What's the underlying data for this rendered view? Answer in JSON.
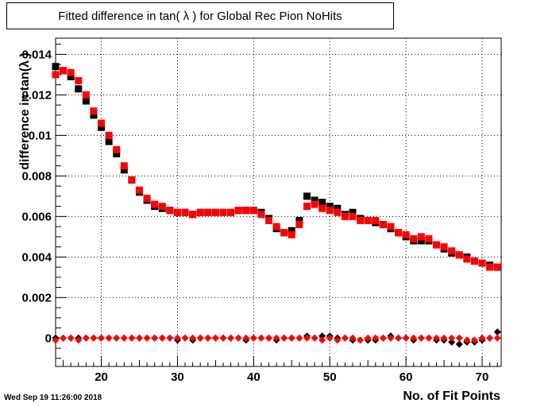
{
  "title": "Fitted difference in tan( λ ) for Global Rec Pion NoHits",
  "timestamp": "Wed Sep 19 11:26:00 2018",
  "chart_data": {
    "type": "scatter",
    "title": "Fitted difference in tan( λ ) for Global Rec Pion NoHits",
    "xlabel": "No. of Fit Points",
    "ylabel": "difference in tan(λ )",
    "xlim": [
      14,
      72.5
    ],
    "ylim": [
      -0.0014,
      0.0148
    ],
    "grid": true,
    "x_ticks": [
      20,
      30,
      40,
      50,
      60,
      70
    ],
    "x_tick_labels": [
      "20",
      "30",
      "40",
      "50",
      "60",
      "70"
    ],
    "y_ticks": [
      0,
      0.002,
      0.004,
      0.006,
      0.008,
      0.01,
      0.012,
      0.014
    ],
    "y_tick_labels": [
      "0",
      "0.002",
      "0.004",
      "0.006",
      "0.008",
      "0.01",
      "0.012",
      "0.014"
    ],
    "series": [
      {
        "marker": "square",
        "color": "#000000",
        "x": [
          14,
          15,
          16,
          17,
          18,
          19,
          20,
          21,
          22,
          23,
          24,
          25,
          26,
          27,
          28,
          29,
          30,
          31,
          32,
          33,
          34,
          35,
          36,
          37,
          38,
          39,
          40,
          41,
          42,
          43,
          44,
          45,
          46,
          47,
          48,
          49,
          50,
          51,
          52,
          53,
          54,
          55,
          56,
          57,
          58,
          59,
          60,
          61,
          62,
          63,
          64,
          65,
          66,
          67,
          68,
          69,
          70,
          71,
          72
        ],
        "values": [
          0.0134,
          0.0132,
          0.0129,
          0.0123,
          0.0117,
          0.011,
          0.0104,
          0.0097,
          0.0091,
          0.0083,
          0.0078,
          0.0072,
          0.0068,
          0.0065,
          0.0064,
          0.0063,
          0.0062,
          0.0062,
          0.0061,
          0.0062,
          0.0062,
          0.0062,
          0.0062,
          0.0062,
          0.0063,
          0.0063,
          0.0063,
          0.0062,
          0.0059,
          0.0054,
          0.0052,
          0.0053,
          0.0058,
          0.007,
          0.0068,
          0.0067,
          0.0065,
          0.0064,
          0.0061,
          0.0062,
          0.0059,
          0.0058,
          0.0057,
          0.0056,
          0.0054,
          0.0052,
          0.005,
          0.0048,
          0.0048,
          0.0048,
          0.0046,
          0.0044,
          0.0042,
          0.0041,
          0.004,
          0.0038,
          0.0037,
          0.0036,
          0.0035
        ]
      },
      {
        "marker": "square",
        "color": "#ff0000",
        "x": [
          14,
          15,
          16,
          17,
          18,
          19,
          20,
          21,
          22,
          23,
          24,
          25,
          26,
          27,
          28,
          29,
          30,
          31,
          32,
          33,
          34,
          35,
          36,
          37,
          38,
          39,
          40,
          41,
          42,
          43,
          44,
          45,
          46,
          47,
          48,
          49,
          50,
          51,
          52,
          53,
          54,
          55,
          56,
          57,
          58,
          59,
          60,
          61,
          62,
          63,
          64,
          65,
          66,
          67,
          68,
          69,
          70,
          71,
          72
        ],
        "values": [
          0.013,
          0.0132,
          0.0131,
          0.0127,
          0.012,
          0.0112,
          0.0106,
          0.01,
          0.0093,
          0.0085,
          0.0078,
          0.0073,
          0.0069,
          0.0066,
          0.0065,
          0.0063,
          0.0062,
          0.0062,
          0.0061,
          0.0062,
          0.0062,
          0.0062,
          0.0062,
          0.0062,
          0.0063,
          0.0063,
          0.0063,
          0.0061,
          0.0058,
          0.0055,
          0.0052,
          0.0051,
          0.0056,
          0.0065,
          0.0066,
          0.0064,
          0.0063,
          0.0062,
          0.006,
          0.006,
          0.0058,
          0.0058,
          0.0058,
          0.0056,
          0.0055,
          0.0052,
          0.0051,
          0.0049,
          0.005,
          0.0049,
          0.0046,
          0.0045,
          0.0043,
          0.0041,
          0.0039,
          0.0038,
          0.0037,
          0.0035,
          0.0035
        ]
      },
      {
        "marker": "diamond",
        "color": "#000000",
        "x": [
          14,
          15,
          16,
          17,
          18,
          19,
          20,
          21,
          22,
          23,
          24,
          25,
          26,
          27,
          28,
          29,
          30,
          31,
          32,
          33,
          34,
          35,
          36,
          37,
          38,
          39,
          40,
          41,
          42,
          43,
          44,
          45,
          46,
          47,
          48,
          49,
          50,
          51,
          52,
          53,
          54,
          55,
          56,
          57,
          58,
          59,
          60,
          61,
          62,
          63,
          64,
          65,
          66,
          67,
          68,
          69,
          70,
          71,
          72
        ],
        "values": [
          0.0,
          0.0,
          0.0,
          0.0,
          0.0,
          0.0,
          0.0,
          0.0,
          0.0,
          0.0,
          0.0,
          0.0,
          0.0,
          0.0,
          0.0,
          0.0,
          -0.0001,
          0.0,
          -0.0001,
          0.0,
          0.0,
          0.0,
          0.0,
          0.0,
          0.0,
          -0.0001,
          0.0,
          0.0,
          0.0,
          -0.0001,
          0.0,
          0.0,
          0.0,
          0.0001,
          0.0,
          0.0001,
          0.0001,
          0.0,
          0.0,
          -0.0001,
          -0.0001,
          -0.0001,
          -0.0001,
          0.0,
          0.0001,
          0.0,
          0.0,
          -0.0001,
          0.0,
          0.0,
          -0.0001,
          -0.0001,
          -0.0002,
          -0.0003,
          -0.0002,
          -0.0002,
          -0.0001,
          0.0,
          0.0003
        ]
      },
      {
        "marker": "diamond",
        "color": "#ff0000",
        "x": [
          14,
          15,
          16,
          17,
          18,
          19,
          20,
          21,
          22,
          23,
          24,
          25,
          26,
          27,
          28,
          29,
          30,
          31,
          32,
          33,
          34,
          35,
          36,
          37,
          38,
          39,
          40,
          41,
          42,
          43,
          44,
          45,
          46,
          47,
          48,
          49,
          50,
          51,
          52,
          53,
          54,
          55,
          56,
          57,
          58,
          59,
          60,
          61,
          62,
          63,
          64,
          65,
          66,
          67,
          68,
          69,
          70,
          71,
          72
        ],
        "values": [
          -0.0001,
          0.0,
          0.0,
          -0.0001,
          0.0,
          0.0,
          0.0,
          0.0,
          0.0,
          0.0,
          0.0,
          0.0,
          0.0,
          0.0,
          0.0,
          0.0,
          0.0,
          0.0,
          0.0,
          0.0,
          0.0,
          0.0,
          0.0,
          0.0,
          0.0,
          0.0,
          0.0,
          0.0,
          0.0,
          0.0,
          0.0,
          0.0,
          0.0,
          0.0,
          0.0,
          -0.0001,
          0.0,
          -0.0001,
          0.0,
          0.0,
          -0.0001,
          0.0,
          0.0,
          0.0,
          0.0,
          0.0,
          0.0,
          0.0,
          0.0,
          0.0,
          0.0,
          0.0,
          0.0,
          0.0,
          -0.0001,
          -0.0001,
          0.0,
          0.0,
          0.0
        ]
      }
    ]
  }
}
